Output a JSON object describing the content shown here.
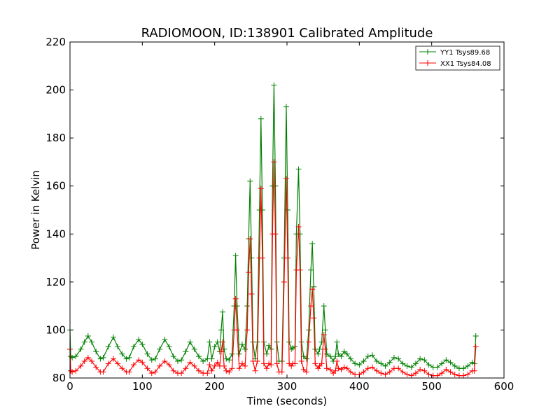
{
  "chart_data": {
    "type": "line",
    "title": "RADIOMOON, ID:138901 Calibrated Amplitude",
    "xlabel": "Time (seconds)",
    "ylabel": "Power in Kelvin",
    "xlim": [
      0,
      600
    ],
    "ylim": [
      80,
      220
    ],
    "xticks": [
      0,
      100,
      200,
      300,
      400,
      500,
      600
    ],
    "yticks": [
      80,
      100,
      120,
      140,
      160,
      180,
      200,
      220
    ],
    "grid": false,
    "legend_position": "top-right",
    "marker": "+",
    "series": [
      {
        "name": "YY1 Tsys89.68",
        "color": "#008000",
        "points": [
          [
            0,
            100
          ],
          [
            1,
            89
          ],
          [
            3,
            88.5
          ],
          [
            8,
            89
          ],
          [
            15,
            92
          ],
          [
            20,
            95
          ],
          [
            25,
            97.5
          ],
          [
            30,
            95
          ],
          [
            36,
            91
          ],
          [
            42,
            88
          ],
          [
            46,
            88.5
          ],
          [
            53,
            93
          ],
          [
            60,
            97
          ],
          [
            66,
            93
          ],
          [
            72,
            90
          ],
          [
            78,
            88
          ],
          [
            82,
            88.5
          ],
          [
            88,
            93
          ],
          [
            95,
            96
          ],
          [
            100,
            94
          ],
          [
            107,
            90
          ],
          [
            113,
            87.5
          ],
          [
            118,
            88
          ],
          [
            124,
            92
          ],
          [
            131,
            96
          ],
          [
            137,
            93
          ],
          [
            143,
            89
          ],
          [
            149,
            87
          ],
          [
            154,
            87.5
          ],
          [
            160,
            91
          ],
          [
            166,
            95
          ],
          [
            172,
            92
          ],
          [
            178,
            89
          ],
          [
            184,
            87
          ],
          [
            190,
            88
          ],
          [
            193,
            95
          ],
          [
            196,
            88
          ],
          [
            200,
            93
          ],
          [
            204,
            95
          ],
          [
            207,
            91
          ],
          [
            209,
            100
          ],
          [
            211,
            107.5
          ],
          [
            213,
            92
          ],
          [
            216,
            88
          ],
          [
            220,
            87.5
          ],
          [
            224,
            90
          ],
          [
            227,
            110
          ],
          [
            229,
            131
          ],
          [
            231,
            110
          ],
          [
            234,
            90
          ],
          [
            238,
            94
          ],
          [
            242,
            92
          ],
          [
            245,
            110
          ],
          [
            247,
            138
          ],
          [
            249,
            162
          ],
          [
            251,
            130
          ],
          [
            253,
            95
          ],
          [
            256,
            88
          ],
          [
            259,
            95
          ],
          [
            262,
            150
          ],
          [
            264,
            188
          ],
          [
            266,
            150
          ],
          [
            268,
            95
          ],
          [
            272,
            90
          ],
          [
            275,
            93.5
          ],
          [
            278,
            92
          ],
          [
            280,
            160
          ],
          [
            282,
            202
          ],
          [
            284,
            160
          ],
          [
            286,
            95
          ],
          [
            289,
            87
          ],
          [
            293,
            87
          ],
          [
            296,
            130
          ],
          [
            299,
            193
          ],
          [
            301,
            150
          ],
          [
            303,
            95
          ],
          [
            306,
            92
          ],
          [
            308,
            92.5
          ],
          [
            311,
            93
          ],
          [
            313,
            140
          ],
          [
            316,
            167
          ],
          [
            318,
            140
          ],
          [
            320,
            95
          ],
          [
            323,
            89
          ],
          [
            327,
            88
          ],
          [
            330,
            100
          ],
          [
            333,
            125
          ],
          [
            335,
            136
          ],
          [
            337,
            118
          ],
          [
            339,
            92
          ],
          [
            343,
            90
          ],
          [
            345,
            92
          ],
          [
            348,
            95
          ],
          [
            351,
            110
          ],
          [
            353,
            100
          ],
          [
            355,
            90
          ],
          [
            360,
            89
          ],
          [
            364,
            87
          ],
          [
            367,
            89
          ],
          [
            369,
            95
          ],
          [
            371,
            90
          ],
          [
            375,
            89
          ],
          [
            379,
            91
          ],
          [
            383,
            90
          ],
          [
            388,
            88
          ],
          [
            394,
            86
          ],
          [
            400,
            85.5
          ],
          [
            406,
            87
          ],
          [
            412,
            89
          ],
          [
            418,
            89.5
          ],
          [
            424,
            87
          ],
          [
            430,
            86
          ],
          [
            436,
            85
          ],
          [
            442,
            86.5
          ],
          [
            448,
            88.5
          ],
          [
            454,
            88
          ],
          [
            460,
            86
          ],
          [
            466,
            85
          ],
          [
            472,
            84.5
          ],
          [
            478,
            86
          ],
          [
            484,
            88
          ],
          [
            490,
            87.5
          ],
          [
            496,
            85.5
          ],
          [
            502,
            84.5
          ],
          [
            508,
            84.5
          ],
          [
            514,
            86
          ],
          [
            520,
            87.5
          ],
          [
            526,
            86.5
          ],
          [
            532,
            85
          ],
          [
            538,
            84
          ],
          [
            544,
            84
          ],
          [
            550,
            85
          ],
          [
            556,
            86.5
          ],
          [
            559,
            86
          ],
          [
            561,
            97.5
          ]
        ]
      },
      {
        "name": "XX1 Tsys84.08",
        "color": "#ff0000",
        "points": [
          [
            0,
            92
          ],
          [
            1,
            83
          ],
          [
            3,
            82.5
          ],
          [
            8,
            83
          ],
          [
            15,
            85
          ],
          [
            20,
            87
          ],
          [
            25,
            88.5
          ],
          [
            30,
            87
          ],
          [
            36,
            84.5
          ],
          [
            42,
            82.5
          ],
          [
            46,
            82.5
          ],
          [
            53,
            86
          ],
          [
            60,
            88
          ],
          [
            66,
            86
          ],
          [
            72,
            84
          ],
          [
            78,
            82.5
          ],
          [
            82,
            82.5
          ],
          [
            88,
            85.5
          ],
          [
            95,
            87.5
          ],
          [
            100,
            86.5
          ],
          [
            107,
            84
          ],
          [
            113,
            82
          ],
          [
            118,
            82.5
          ],
          [
            124,
            85
          ],
          [
            131,
            87
          ],
          [
            137,
            85.5
          ],
          [
            143,
            83
          ],
          [
            149,
            82
          ],
          [
            154,
            82
          ],
          [
            160,
            84
          ],
          [
            166,
            86.5
          ],
          [
            172,
            85
          ],
          [
            178,
            83
          ],
          [
            184,
            82
          ],
          [
            190,
            82
          ],
          [
            193,
            85.5
          ],
          [
            196,
            83
          ],
          [
            200,
            85
          ],
          [
            204,
            86.5
          ],
          [
            207,
            85
          ],
          [
            209,
            91
          ],
          [
            211,
            95
          ],
          [
            213,
            85
          ],
          [
            216,
            83
          ],
          [
            220,
            82.5
          ],
          [
            224,
            84
          ],
          [
            227,
            100
          ],
          [
            229,
            113
          ],
          [
            231,
            100
          ],
          [
            234,
            84
          ],
          [
            238,
            86
          ],
          [
            242,
            85
          ],
          [
            245,
            100
          ],
          [
            247,
            124
          ],
          [
            249,
            138
          ],
          [
            251,
            115
          ],
          [
            253,
            87
          ],
          [
            256,
            83
          ],
          [
            259,
            87
          ],
          [
            262,
            130
          ],
          [
            264,
            159
          ],
          [
            266,
            130
          ],
          [
            268,
            86
          ],
          [
            272,
            84
          ],
          [
            275,
            86
          ],
          [
            278,
            85.5
          ],
          [
            280,
            140
          ],
          [
            282,
            170
          ],
          [
            284,
            140
          ],
          [
            286,
            86
          ],
          [
            289,
            82.5
          ],
          [
            293,
            82.5
          ],
          [
            296,
            120
          ],
          [
            299,
            163
          ],
          [
            301,
            130
          ],
          [
            303,
            86
          ],
          [
            306,
            85
          ],
          [
            308,
            86
          ],
          [
            311,
            86
          ],
          [
            313,
            125
          ],
          [
            316,
            143
          ],
          [
            318,
            125
          ],
          [
            320,
            87
          ],
          [
            323,
            83.5
          ],
          [
            327,
            82.5
          ],
          [
            330,
            95
          ],
          [
            333,
            110
          ],
          [
            335,
            117
          ],
          [
            337,
            105
          ],
          [
            339,
            86
          ],
          [
            343,
            84
          ],
          [
            345,
            85
          ],
          [
            348,
            86
          ],
          [
            351,
            98
          ],
          [
            353,
            92
          ],
          [
            355,
            84
          ],
          [
            360,
            83.5
          ],
          [
            364,
            82
          ],
          [
            367,
            83
          ],
          [
            369,
            87
          ],
          [
            371,
            84
          ],
          [
            375,
            83.5
          ],
          [
            379,
            84.5
          ],
          [
            383,
            84
          ],
          [
            388,
            82.5
          ],
          [
            394,
            81.5
          ],
          [
            400,
            81.5
          ],
          [
            406,
            82.5
          ],
          [
            412,
            84
          ],
          [
            418,
            84.5
          ],
          [
            424,
            83
          ],
          [
            430,
            82
          ],
          [
            436,
            81.5
          ],
          [
            442,
            82.5
          ],
          [
            448,
            84
          ],
          [
            454,
            84
          ],
          [
            460,
            82.5
          ],
          [
            466,
            81.5
          ],
          [
            472,
            81
          ],
          [
            478,
            82
          ],
          [
            484,
            83.5
          ],
          [
            490,
            83
          ],
          [
            496,
            81.5
          ],
          [
            502,
            81
          ],
          [
            508,
            81
          ],
          [
            514,
            82
          ],
          [
            520,
            83.5
          ],
          [
            526,
            82.5
          ],
          [
            532,
            81.5
          ],
          [
            538,
            81
          ],
          [
            544,
            81
          ],
          [
            550,
            81.5
          ],
          [
            556,
            83
          ],
          [
            559,
            83
          ],
          [
            561,
            93
          ]
        ]
      }
    ]
  }
}
